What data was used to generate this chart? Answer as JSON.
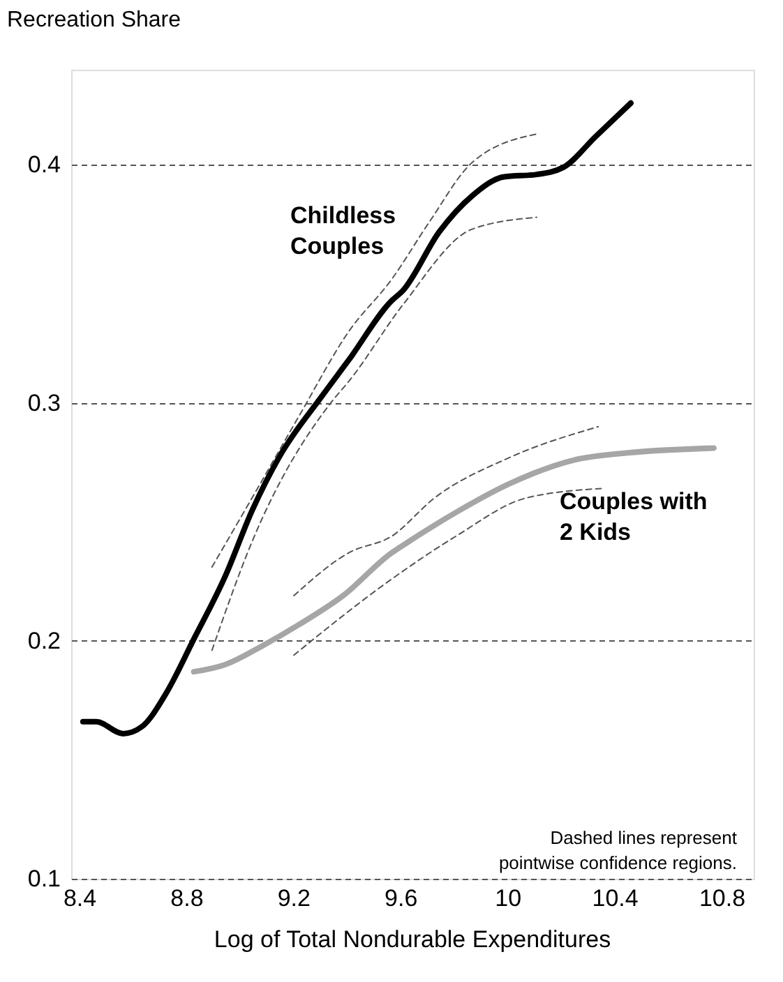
{
  "chart_data": {
    "type": "line",
    "ylabel": "Recreation Share",
    "xlabel": "Log of Total Nondurable Expenditures",
    "xlim": [
      8.37,
      10.92
    ],
    "xticks": [
      8.4,
      8.8,
      9.2,
      9.6,
      10,
      10.4,
      10.8
    ],
    "ylim": [
      0.1,
      0.44
    ],
    "yticks": [
      0.1,
      0.2,
      0.3,
      0.4
    ],
    "grid": "y",
    "annotations": [
      "Dashed lines represent\npointwise confidence regions."
    ],
    "series": [
      {
        "name": "Childless\nCouples",
        "color": "#000000",
        "line_style": "solid",
        "x": [
          8.414,
          8.464,
          8.564,
          8.635,
          8.725,
          8.825,
          8.945,
          9.047,
          9.146,
          9.308,
          9.407,
          9.568,
          9.608,
          9.746,
          9.868,
          9.988,
          10.109,
          10.209,
          10.33,
          10.461
        ],
        "values": [
          0.166,
          0.166,
          0.161,
          0.164,
          0.178,
          0.2,
          0.227,
          0.255,
          0.277,
          0.303,
          0.318,
          0.343,
          0.347,
          0.372,
          0.387,
          0.395,
          0.396,
          0.399,
          0.412,
          0.426
        ]
      },
      {
        "name": "Couples with\n2 Kids",
        "color": "#a6a6a6",
        "line_style": "solid",
        "x": [
          8.828,
          8.945,
          9.086,
          9.224,
          9.386,
          9.568,
          9.608,
          9.808,
          10.007,
          10.249,
          10.45,
          10.771
        ],
        "values": [
          0.187,
          0.19,
          0.198,
          0.207,
          0.219,
          0.237,
          0.24,
          0.254,
          0.266,
          0.276,
          0.279,
          0.281
        ]
      },
      {
        "color": "#555555",
        "line_style": "dashed",
        "x": [
          8.896,
          9.066,
          9.224,
          9.407,
          9.568,
          9.708,
          9.868,
          10.109
        ],
        "values": [
          0.231,
          0.264,
          0.295,
          0.33,
          0.352,
          0.376,
          0.401,
          0.413
        ]
      },
      {
        "color": "#555555",
        "line_style": "dashed",
        "x": [
          8.896,
          9.047,
          9.347,
          9.407,
          9.608,
          9.868,
          10.109
        ],
        "values": [
          0.196,
          0.242,
          0.301,
          0.309,
          0.341,
          0.373,
          0.378
        ]
      },
      {
        "color": "#555555",
        "line_style": "dashed",
        "x": [
          9.202,
          9.407,
          9.568,
          9.727,
          10.007,
          10.339
        ],
        "values": [
          0.219,
          0.237,
          0.244,
          0.26,
          0.277,
          0.29
        ]
      },
      {
        "color": "#555555",
        "line_style": "dashed",
        "x": [
          9.202,
          9.568,
          9.808,
          10.069,
          10.35
        ],
        "values": [
          0.194,
          0.226,
          0.244,
          0.26,
          0.264
        ]
      }
    ]
  }
}
